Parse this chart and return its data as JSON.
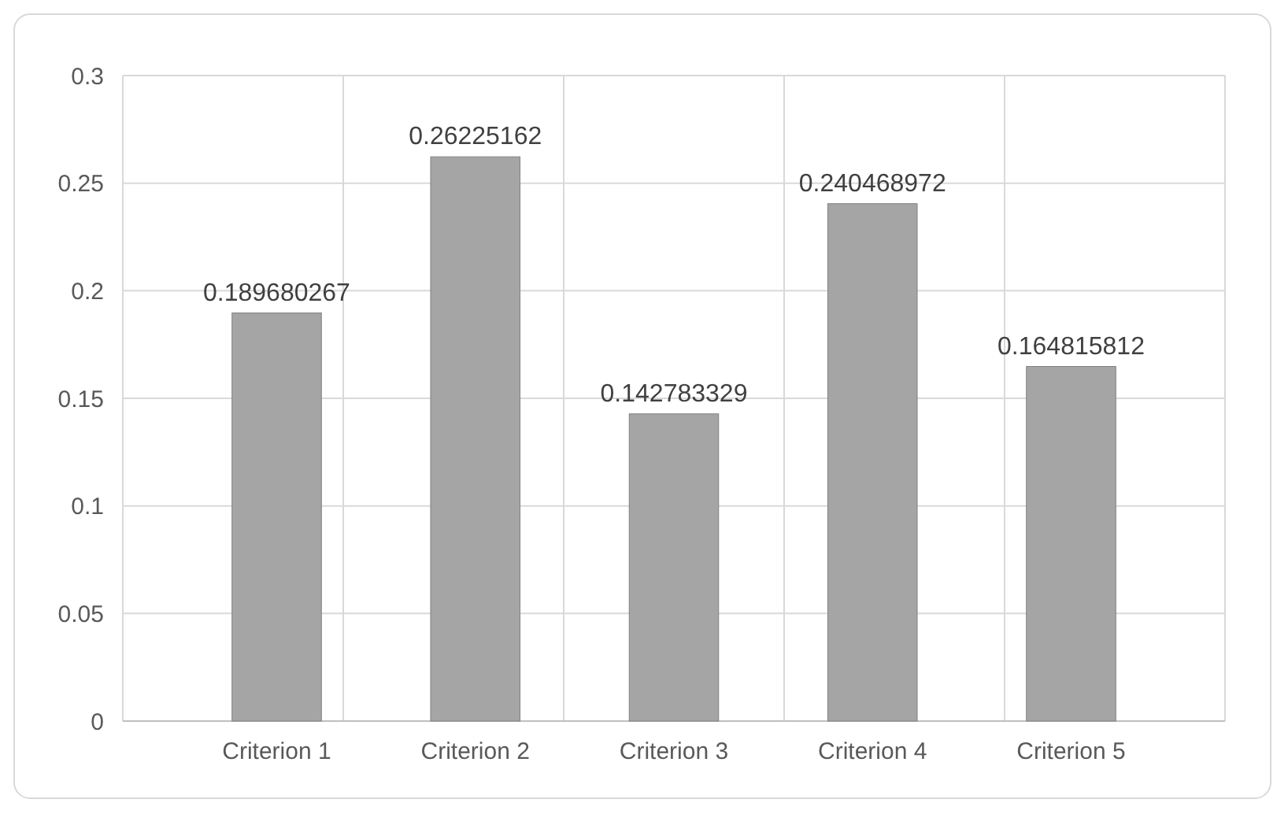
{
  "chart_data": {
    "type": "bar",
    "categories": [
      "Criterion 1",
      "Criterion 2",
      "Criterion 3",
      "Criterion 4",
      "Criterion 5"
    ],
    "values": [
      0.189680267,
      0.26225162,
      0.142783329,
      0.240468972,
      0.164815812
    ],
    "color": "#a5a5a5",
    "ylim": [
      0,
      0.3
    ],
    "yticks": [
      0,
      0.05,
      0.1,
      0.15,
      0.2,
      0.25,
      0.3
    ],
    "grid": true,
    "data_labels": true
  }
}
